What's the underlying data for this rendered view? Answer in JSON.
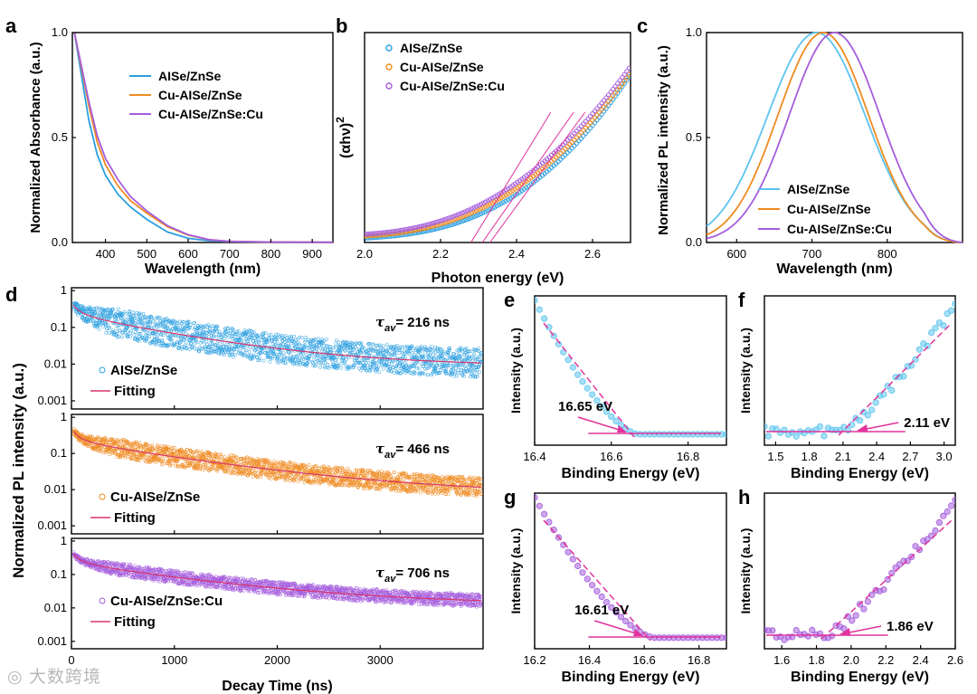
{
  "colors": {
    "blue": "#2a9fe0",
    "orange": "#ef8a1f",
    "purple": "#a55ddd",
    "fit": "#d9346b",
    "magenta": "#e0339c",
    "light_blue": "#5cc4ef"
  },
  "watermark": "大数跨境",
  "chart_data": [
    {
      "id": "a",
      "type": "line",
      "panel_label": "a",
      "title": "",
      "xlabel": "Wavelength (nm)",
      "ylabel": "Normalized Absorbance (a.u.)",
      "xlim": [
        320,
        950
      ],
      "ylim": [
        0,
        1.0
      ],
      "xticks": [
        400,
        500,
        600,
        700,
        800,
        900
      ],
      "yticks": [
        0.0,
        0.5,
        1.0
      ],
      "ytick_labels": [
        "0.0",
        "0.5",
        "1.0"
      ],
      "legend": [
        "AISe/ZnSe",
        "Cu-AISe/ZnSe",
        "Cu-AISe/ZnSe:Cu"
      ],
      "series": [
        {
          "name": "AISe/ZnSe",
          "color": "blue",
          "x": [
            325,
            340,
            360,
            380,
            400,
            430,
            460,
            500,
            550,
            600,
            650,
            700,
            800,
            950
          ],
          "y": [
            1.0,
            0.82,
            0.58,
            0.42,
            0.32,
            0.23,
            0.17,
            0.11,
            0.05,
            0.02,
            0.008,
            0.004,
            0.002,
            0.001
          ]
        },
        {
          "name": "Cu-AISe/ZnSe",
          "color": "orange",
          "x": [
            325,
            340,
            360,
            380,
            400,
            430,
            460,
            500,
            550,
            600,
            650,
            700,
            800,
            950
          ],
          "y": [
            1.0,
            0.85,
            0.65,
            0.48,
            0.37,
            0.27,
            0.2,
            0.14,
            0.075,
            0.035,
            0.013,
            0.005,
            0.002,
            0.001
          ]
        },
        {
          "name": "Cu-AISe/ZnSe:Cu",
          "color": "purple",
          "x": [
            325,
            340,
            360,
            380,
            400,
            430,
            460,
            500,
            550,
            600,
            650,
            700,
            800,
            950
          ],
          "y": [
            1.0,
            0.86,
            0.67,
            0.51,
            0.4,
            0.3,
            0.22,
            0.15,
            0.08,
            0.037,
            0.014,
            0.005,
            0.002,
            0.001
          ]
        }
      ]
    },
    {
      "id": "b",
      "type": "scatter",
      "panel_label": "b",
      "xlabel": "Photon energy (eV)",
      "ylabel": "(αhν)",
      "ylabel_sup": "2",
      "xlim": [
        2.0,
        2.7
      ],
      "ylim": [
        0,
        1
      ],
      "xticks": [
        2.0,
        2.2,
        2.4,
        2.6
      ],
      "xtick_labels": [
        "2.0",
        "2.2",
        "2.4",
        "2.6"
      ],
      "legend": [
        "AISe/ZnSe",
        "Cu-AISe/ZnSe",
        "Cu-AISe/ZnSe:Cu"
      ],
      "series": [
        {
          "name": "AISe/ZnSe",
          "color": "blue",
          "a": 0.02,
          "b": 0.08,
          "c": 0.7,
          "n": 2.6
        },
        {
          "name": "Cu-AISe/ZnSe",
          "color": "orange",
          "a": 0.03,
          "b": 0.08,
          "c": 0.7,
          "n": 2.4
        },
        {
          "name": "Cu-AISe/ZnSe:Cu",
          "color": "purple",
          "a": 0.04,
          "b": 0.08,
          "c": 0.72,
          "n": 2.3
        }
      ],
      "tangents": [
        {
          "x0": 2.28,
          "x1": 2.49
        },
        {
          "x0": 2.31,
          "x1": 2.55
        },
        {
          "x0": 2.33,
          "x1": 2.58
        }
      ]
    },
    {
      "id": "c",
      "type": "line",
      "panel_label": "c",
      "xlabel": "Wavelength (nm)",
      "ylabel": "Normalized  PL intensity (a.u.)",
      "xlim": [
        560,
        900
      ],
      "ylim": [
        0,
        1.0
      ],
      "xticks": [
        600,
        700,
        800
      ],
      "yticks": [
        0.0,
        0.5,
        1.0
      ],
      "ytick_labels": [
        "0.0",
        "0.5",
        "1.0"
      ],
      "legend": [
        "AISe/ZnSe",
        "Cu-AISe/ZnSe",
        "Cu-AISe/ZnSe:Cu"
      ],
      "series": [
        {
          "name": "AISe/ZnSe",
          "color": "light_blue",
          "peak": 706,
          "sigma": 75
        },
        {
          "name": "Cu-AISe/ZnSe",
          "color": "orange",
          "peak": 715,
          "sigma": 70
        },
        {
          "name": "Cu-AISe/ZnSe:Cu",
          "color": "purple",
          "peak": 730,
          "sigma": 70
        }
      ]
    },
    {
      "id": "d",
      "type": "scatter",
      "panel_label": "d",
      "xlabel": "Decay Time (ns)",
      "ylabel": "Normalized  PL intensity (a.u.)",
      "xlim": [
        0,
        4000
      ],
      "ylog": [
        0.0006,
        1.2
      ],
      "xticks": [
        0,
        1000,
        2000,
        3000
      ],
      "yticks": [
        1,
        0.1,
        0.01,
        0.001
      ],
      "ytick_labels": [
        "1",
        "0.1",
        "0.01",
        "0.001"
      ],
      "tau_symbol": "τ",
      "tau_sub": "av",
      "subpanels": [
        {
          "name": "AISe/ZnSe",
          "color": "blue",
          "tau_text": "= 216 ns",
          "fit_label": "Fitting",
          "tail": 0.007,
          "tau": 900,
          "noise": 0.9
        },
        {
          "name": "Cu-AISe/ZnSe",
          "color": "orange",
          "tau_text": "= 466 ns",
          "fit_label": "Fitting",
          "tail": 0.006,
          "tau": 1100,
          "noise": 0.6
        },
        {
          "name": "Cu-AISe/ZnSe:Cu",
          "color": "purple",
          "tau_text": "= 706 ns",
          "fit_label": "Fitting",
          "tail": 0.011,
          "tau": 1100,
          "noise": 0.45
        }
      ]
    },
    {
      "id": "e",
      "type": "scatter",
      "panel_label": "e",
      "xlabel": "Binding Energy (eV)",
      "ylabel": "Intensity (a.u.)",
      "xlim": [
        16.4,
        16.9
      ],
      "xticks": [
        16.4,
        16.6,
        16.8
      ],
      "xtick_labels": [
        "16.4",
        "16.6",
        "16.8"
      ],
      "annotation": "16.65 eV",
      "edge": 16.65
    },
    {
      "id": "f",
      "type": "scatter",
      "panel_label": "f",
      "xlabel": "Binding Energy (eV)",
      "ylabel": "Intensity (a.u.)",
      "xlim": [
        1.4,
        3.1
      ],
      "xticks": [
        1.5,
        1.8,
        2.1,
        2.4,
        2.7,
        3.0
      ],
      "xtick_labels": [
        "1.5",
        "1.8",
        "2.1",
        "2.4",
        "2.7",
        "3.0"
      ],
      "annotation": "2.11 eV",
      "edge": 2.11
    },
    {
      "id": "g",
      "type": "scatter",
      "panel_label": "g",
      "xlabel": "Binding Energy (eV)",
      "ylabel": "Intensity (a.u.)",
      "xlim": [
        16.2,
        16.9
      ],
      "xticks": [
        16.2,
        16.4,
        16.6,
        16.8
      ],
      "xtick_labels": [
        "16.2",
        "16.4",
        "16.6",
        "16.8"
      ],
      "annotation": "16.61 eV",
      "edge": 16.61
    },
    {
      "id": "h",
      "type": "scatter",
      "panel_label": "h",
      "xlabel": "Binding Energy (eV)",
      "ylabel": "Intensity (a.u.)",
      "xlim": [
        1.5,
        2.6
      ],
      "xticks": [
        1.6,
        1.8,
        2.0,
        2.2,
        2.4,
        2.6
      ],
      "xtick_labels": [
        "1.6",
        "1.8",
        "2.0",
        "2.2",
        "2.4",
        "2.6"
      ],
      "annotation": "1.86 eV",
      "edge": 1.86
    }
  ]
}
